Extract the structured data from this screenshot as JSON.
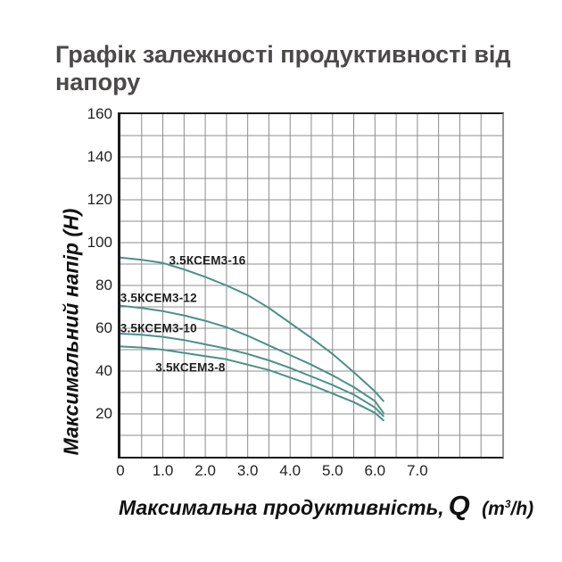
{
  "page": {
    "title_line1": "Графік залежності продуктивності від",
    "title_line2": "напору"
  },
  "axes": {
    "y_title": "Максимальний напір (H)",
    "x_title_main": "Максимальна продуктивність,",
    "x_title_q": "Q",
    "x_unit_pre": "(m",
    "x_unit_sup": "3",
    "x_unit_post": "/h)"
  },
  "chart_data": {
    "type": "line",
    "title": "Графік залежності продуктивності від напору",
    "xlabel": "Максимальна продуктивність, Q (m³/h)",
    "ylabel": "Максимальний напір (H)",
    "xlim": [
      0,
      9
    ],
    "ylim": [
      0,
      160
    ],
    "x_minor_step": 0.5,
    "y_minor_step": 10,
    "grid": true,
    "legend_position": "inline-labels",
    "x_ticks": [
      {
        "v": 0,
        "t": "0"
      },
      {
        "v": 1,
        "t": "1.0"
      },
      {
        "v": 2,
        "t": "2.0"
      },
      {
        "v": 3,
        "t": "3.0"
      },
      {
        "v": 4,
        "t": "4.0"
      },
      {
        "v": 5,
        "t": "5.0"
      },
      {
        "v": 6,
        "t": "6.0"
      },
      {
        "v": 7,
        "t": "7.0"
      }
    ],
    "y_ticks": [
      {
        "v": 160,
        "t": "160"
      },
      {
        "v": 140,
        "t": "140"
      },
      {
        "v": 120,
        "t": "120"
      },
      {
        "v": 100,
        "t": "100"
      },
      {
        "v": 80,
        "t": "80"
      },
      {
        "v": 60,
        "t": "60"
      },
      {
        "v": 40,
        "t": "40"
      },
      {
        "v": 20,
        "t": "20"
      }
    ],
    "series": [
      {
        "key": "kcem3-16",
        "name": "3.5КСЕМ3-16",
        "label_at": [
          2.05,
          91.8
        ],
        "points": [
          [
            0,
            93
          ],
          [
            0.5,
            92
          ],
          [
            1,
            90.5
          ],
          [
            1.5,
            87.5
          ],
          [
            2,
            84
          ],
          [
            2.5,
            80
          ],
          [
            3,
            75.5
          ],
          [
            3.5,
            69.5
          ],
          [
            4,
            62.5
          ],
          [
            4.5,
            55.5
          ],
          [
            5,
            48
          ],
          [
            5.5,
            39.5
          ],
          [
            6,
            30.5
          ],
          [
            6.2,
            26
          ]
        ]
      },
      {
        "key": "kcem3-12",
        "name": "3.5КСЕМ3-12",
        "label_at": [
          0.9,
          74.2
        ],
        "points": [
          [
            0,
            70.5
          ],
          [
            0.5,
            69.5
          ],
          [
            1,
            68
          ],
          [
            1.5,
            66
          ],
          [
            2,
            63.5
          ],
          [
            2.5,
            60.5
          ],
          [
            3,
            56.5
          ],
          [
            3.5,
            52
          ],
          [
            4,
            47.5
          ],
          [
            4.5,
            43
          ],
          [
            5,
            38
          ],
          [
            5.5,
            32.5
          ],
          [
            6,
            26
          ],
          [
            6.2,
            20.5
          ]
        ]
      },
      {
        "key": "kcem3-10",
        "name": "3.5КСЕМ3-10",
        "label_at": [
          0.9,
          60.2
        ],
        "points": [
          [
            0,
            57.5
          ],
          [
            0.5,
            57
          ],
          [
            1,
            56
          ],
          [
            1.5,
            54.5
          ],
          [
            2,
            52.5
          ],
          [
            2.5,
            50.5
          ],
          [
            3,
            48
          ],
          [
            3.5,
            45
          ],
          [
            4,
            41.5
          ],
          [
            4.5,
            37.5
          ],
          [
            5,
            33.5
          ],
          [
            5.5,
            29
          ],
          [
            6,
            23
          ],
          [
            6.2,
            19
          ]
        ]
      },
      {
        "key": "kcem3-8",
        "name": "3.5КСЕМ3-8",
        "label_at": [
          1.65,
          41.5
        ],
        "points": [
          [
            0,
            51.5
          ],
          [
            0.5,
            51
          ],
          [
            1,
            50
          ],
          [
            1.5,
            48.5
          ],
          [
            2,
            47
          ],
          [
            2.5,
            45.5
          ],
          [
            3,
            43
          ],
          [
            3.5,
            40.5
          ],
          [
            4,
            37
          ],
          [
            4.5,
            33.5
          ],
          [
            5,
            29.5
          ],
          [
            5.5,
            25.5
          ],
          [
            6,
            20.5
          ],
          [
            6.2,
            17
          ]
        ]
      }
    ],
    "colors": {
      "curve": "#4a9188",
      "grid": "#8c8c8c",
      "axis": "#1a1a1a",
      "title": "#4b4a48",
      "text": "#1f1f1f"
    }
  }
}
